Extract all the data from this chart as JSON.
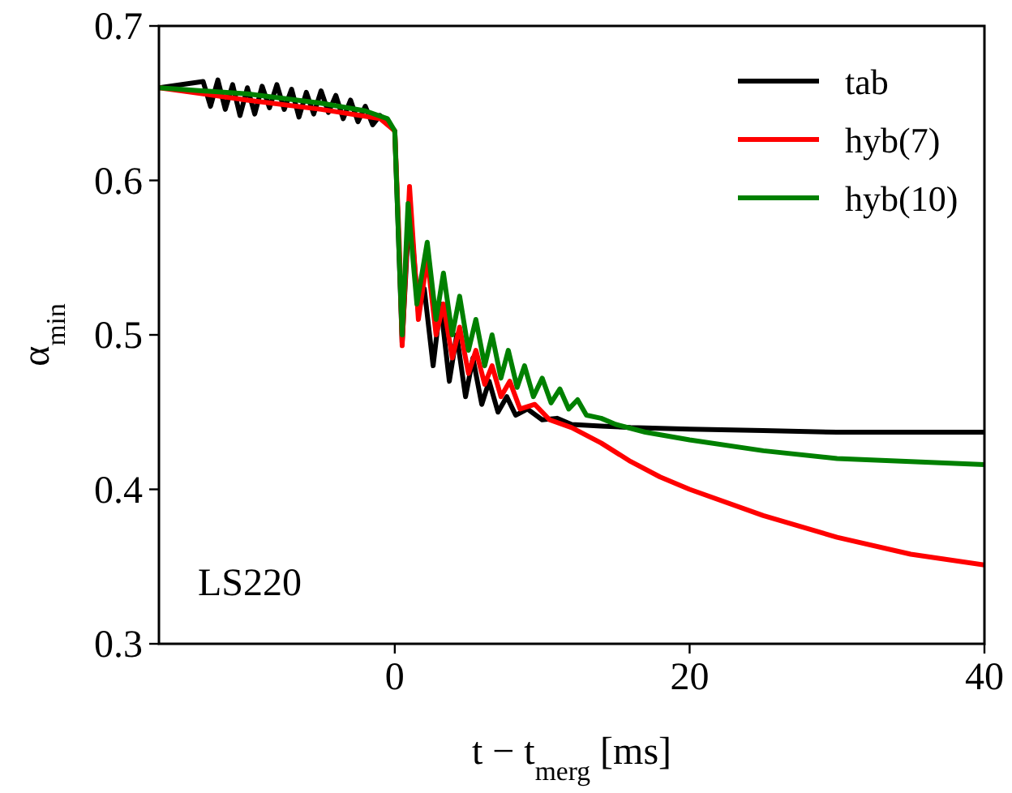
{
  "chart_data": {
    "type": "line",
    "xlabel": "t − t$_{merg}$ [ms]",
    "ylabel": "α$_{min}$",
    "xlim": [
      -16,
      40
    ],
    "ylim": [
      0.3,
      0.7
    ],
    "xticks": [
      0,
      20,
      40
    ],
    "yticks": [
      0.3,
      0.4,
      0.5,
      0.6,
      0.7
    ],
    "grid": false,
    "legend": "top right",
    "marker": "none",
    "line_style": "solid",
    "annotations": [
      "LS220"
    ],
    "series": [
      {
        "name": "tab",
        "color": "#000000",
        "x": [
          -16,
          -13,
          -12.5,
          -12,
          -11.5,
          -11,
          -10.5,
          -10,
          -9.5,
          -9,
          -8.5,
          -8,
          -7.5,
          -7,
          -6.5,
          -6,
          -5.5,
          -5,
          -4.5,
          -4,
          -3.5,
          -3,
          -2.5,
          -2,
          -1.5,
          -1,
          -0.5,
          0,
          0.3,
          0.5,
          1.0,
          1.6,
          2.0,
          2.6,
          3.1,
          3.7,
          4.2,
          4.8,
          5.3,
          5.9,
          6.4,
          7,
          7.6,
          8.2,
          9,
          10,
          11,
          12,
          14,
          16,
          20,
          25,
          30,
          40
        ],
        "values": [
          0.66,
          0.664,
          0.648,
          0.665,
          0.646,
          0.662,
          0.642,
          0.66,
          0.643,
          0.661,
          0.647,
          0.662,
          0.646,
          0.659,
          0.641,
          0.657,
          0.643,
          0.658,
          0.644,
          0.655,
          0.64,
          0.652,
          0.638,
          0.648,
          0.636,
          0.642,
          0.638,
          0.632,
          0.55,
          0.495,
          0.585,
          0.515,
          0.53,
          0.48,
          0.52,
          0.47,
          0.5,
          0.46,
          0.485,
          0.455,
          0.47,
          0.45,
          0.46,
          0.448,
          0.452,
          0.445,
          0.446,
          0.442,
          0.441,
          0.44,
          0.439,
          0.438,
          0.437,
          0.437
        ]
      },
      {
        "name": "hyb(7)",
        "color": "#ff0000",
        "x": [
          -16,
          -10,
          -5,
          -1,
          0,
          0.3,
          0.5,
          1.0,
          1.6,
          2.2,
          2.8,
          3.3,
          3.9,
          4.4,
          5.0,
          5.5,
          6.1,
          6.6,
          7.2,
          7.8,
          8.5,
          9.5,
          10.5,
          12,
          14,
          16,
          18,
          20,
          25,
          30,
          35,
          40
        ],
        "values": [
          0.66,
          0.652,
          0.646,
          0.64,
          0.632,
          0.56,
          0.493,
          0.596,
          0.51,
          0.55,
          0.5,
          0.52,
          0.485,
          0.505,
          0.475,
          0.49,
          0.468,
          0.48,
          0.46,
          0.47,
          0.452,
          0.455,
          0.445,
          0.44,
          0.43,
          0.418,
          0.408,
          0.4,
          0.383,
          0.369,
          0.358,
          0.351
        ]
      },
      {
        "name": "hyb(10)",
        "color": "#008000",
        "x": [
          -16,
          -10,
          -5,
          -2,
          -0.5,
          0,
          0.3,
          0.5,
          0.9,
          1.5,
          2.2,
          2.8,
          3.3,
          3.9,
          4.4,
          5.0,
          5.5,
          6.1,
          6.6,
          7.2,
          7.7,
          8.3,
          8.8,
          9.4,
          10,
          10.6,
          11.2,
          11.8,
          12.4,
          13,
          14,
          15,
          17,
          20,
          25,
          30,
          35,
          40
        ],
        "values": [
          0.66,
          0.656,
          0.65,
          0.645,
          0.64,
          0.632,
          0.55,
          0.5,
          0.585,
          0.52,
          0.56,
          0.51,
          0.54,
          0.5,
          0.525,
          0.49,
          0.51,
          0.48,
          0.5,
          0.472,
          0.49,
          0.466,
          0.48,
          0.46,
          0.472,
          0.456,
          0.465,
          0.452,
          0.458,
          0.448,
          0.446,
          0.442,
          0.437,
          0.432,
          0.425,
          0.42,
          0.418,
          0.416
        ]
      }
    ]
  }
}
